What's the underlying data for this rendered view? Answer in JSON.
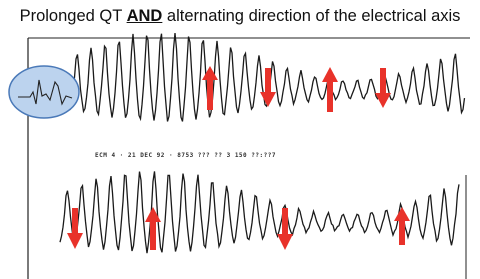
{
  "slide": {
    "title_before": "Prolonged QT ",
    "title_emphasis": "AND",
    "title_after": " alternating direction of the electrical axis",
    "strip_annotation": "ECM 4 · 21 DEC 92 · 8753 ??? ?? 3 150 ??:??7"
  }
}
